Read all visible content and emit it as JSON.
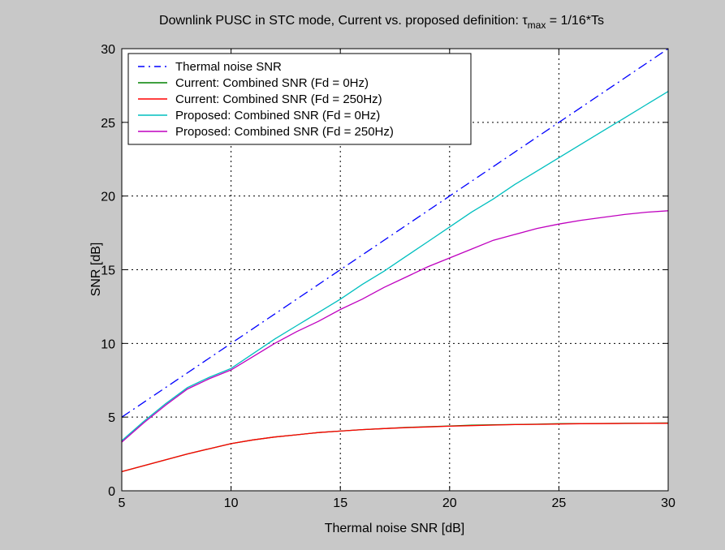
{
  "figure": {
    "background": "#c8c8c8",
    "axes_background": "#ffffff"
  },
  "chart_data": {
    "type": "line",
    "title_main": "Downlink PUSC in STC mode, Current vs. proposed definition: ",
    "title_tau": "τ",
    "title_sub": "max",
    "title_tail": " = 1/16*Ts",
    "xlabel": "Thermal noise SNR [dB]",
    "ylabel": "SNR [dB]",
    "xlim": [
      5,
      30
    ],
    "ylim": [
      0,
      30
    ],
    "xticks": [
      5,
      10,
      15,
      20,
      25,
      30
    ],
    "yticks": [
      0,
      5,
      10,
      15,
      20,
      25,
      30
    ],
    "xtick_labels": [
      "5",
      "10",
      "15",
      "20",
      "25",
      "30"
    ],
    "ytick_labels": [
      "0",
      "5",
      "10",
      "15",
      "20",
      "25",
      "30"
    ],
    "grid": true,
    "legend_position": "top-left",
    "series": [
      {
        "name": "Thermal noise SNR",
        "color": "#0000ff",
        "style": "dashdot",
        "x": [
          5,
          30
        ],
        "y": [
          5,
          30
        ]
      },
      {
        "name": "Current: Combined SNR (Fd = 0Hz)",
        "color": "#008000",
        "style": "solid",
        "x": [
          5,
          6,
          7,
          8,
          9,
          10,
          11,
          12,
          13,
          14,
          15,
          16,
          17,
          18,
          19,
          20,
          21,
          22,
          23,
          24,
          25,
          26,
          27,
          28,
          29,
          30
        ],
        "y": [
          1.3,
          1.7,
          2.1,
          2.5,
          2.85,
          3.2,
          3.45,
          3.65,
          3.8,
          3.95,
          4.05,
          4.15,
          4.22,
          4.3,
          4.35,
          4.4,
          4.45,
          4.48,
          4.5,
          4.52,
          4.55,
          4.56,
          4.57,
          4.58,
          4.59,
          4.6
        ]
      },
      {
        "name": "Current: Combined SNR (Fd = 250Hz)",
        "color": "#ff0000",
        "style": "solid",
        "x": [
          5,
          6,
          7,
          8,
          9,
          10,
          11,
          12,
          13,
          14,
          15,
          16,
          17,
          18,
          19,
          20,
          21,
          22,
          23,
          24,
          25,
          26,
          27,
          28,
          29,
          30
        ],
        "y": [
          1.3,
          1.7,
          2.1,
          2.5,
          2.85,
          3.2,
          3.45,
          3.65,
          3.8,
          3.95,
          4.05,
          4.15,
          4.22,
          4.28,
          4.33,
          4.38,
          4.42,
          4.46,
          4.49,
          4.51,
          4.53,
          4.55,
          4.56,
          4.57,
          4.58,
          4.58
        ]
      },
      {
        "name": "Proposed: Combined SNR (Fd = 0Hz)",
        "color": "#00bfbf",
        "style": "solid",
        "x": [
          5,
          6,
          7,
          8,
          9,
          10,
          11,
          12,
          13,
          14,
          15,
          16,
          17,
          18,
          19,
          20,
          21,
          22,
          23,
          24,
          25,
          26,
          27,
          28,
          29,
          30
        ],
        "y": [
          3.4,
          4.7,
          5.9,
          7.0,
          7.7,
          8.3,
          9.3,
          10.3,
          11.2,
          12.1,
          13.0,
          14.0,
          14.9,
          15.9,
          16.9,
          17.9,
          18.9,
          19.8,
          20.8,
          21.7,
          22.6,
          23.5,
          24.4,
          25.3,
          26.2,
          27.1
        ]
      },
      {
        "name": "Proposed: Combined SNR (Fd = 250Hz)",
        "color": "#bf00bf",
        "style": "solid",
        "x": [
          5,
          6,
          7,
          8,
          9,
          10,
          11,
          12,
          13,
          14,
          15,
          16,
          17,
          18,
          19,
          20,
          21,
          22,
          23,
          24,
          25,
          26,
          27,
          28,
          29,
          30
        ],
        "y": [
          3.3,
          4.6,
          5.8,
          6.9,
          7.6,
          8.2,
          9.1,
          10.0,
          10.8,
          11.5,
          12.3,
          13.0,
          13.8,
          14.5,
          15.2,
          15.8,
          16.4,
          17.0,
          17.4,
          17.8,
          18.1,
          18.35,
          18.55,
          18.75,
          18.9,
          19.0
        ]
      }
    ]
  }
}
